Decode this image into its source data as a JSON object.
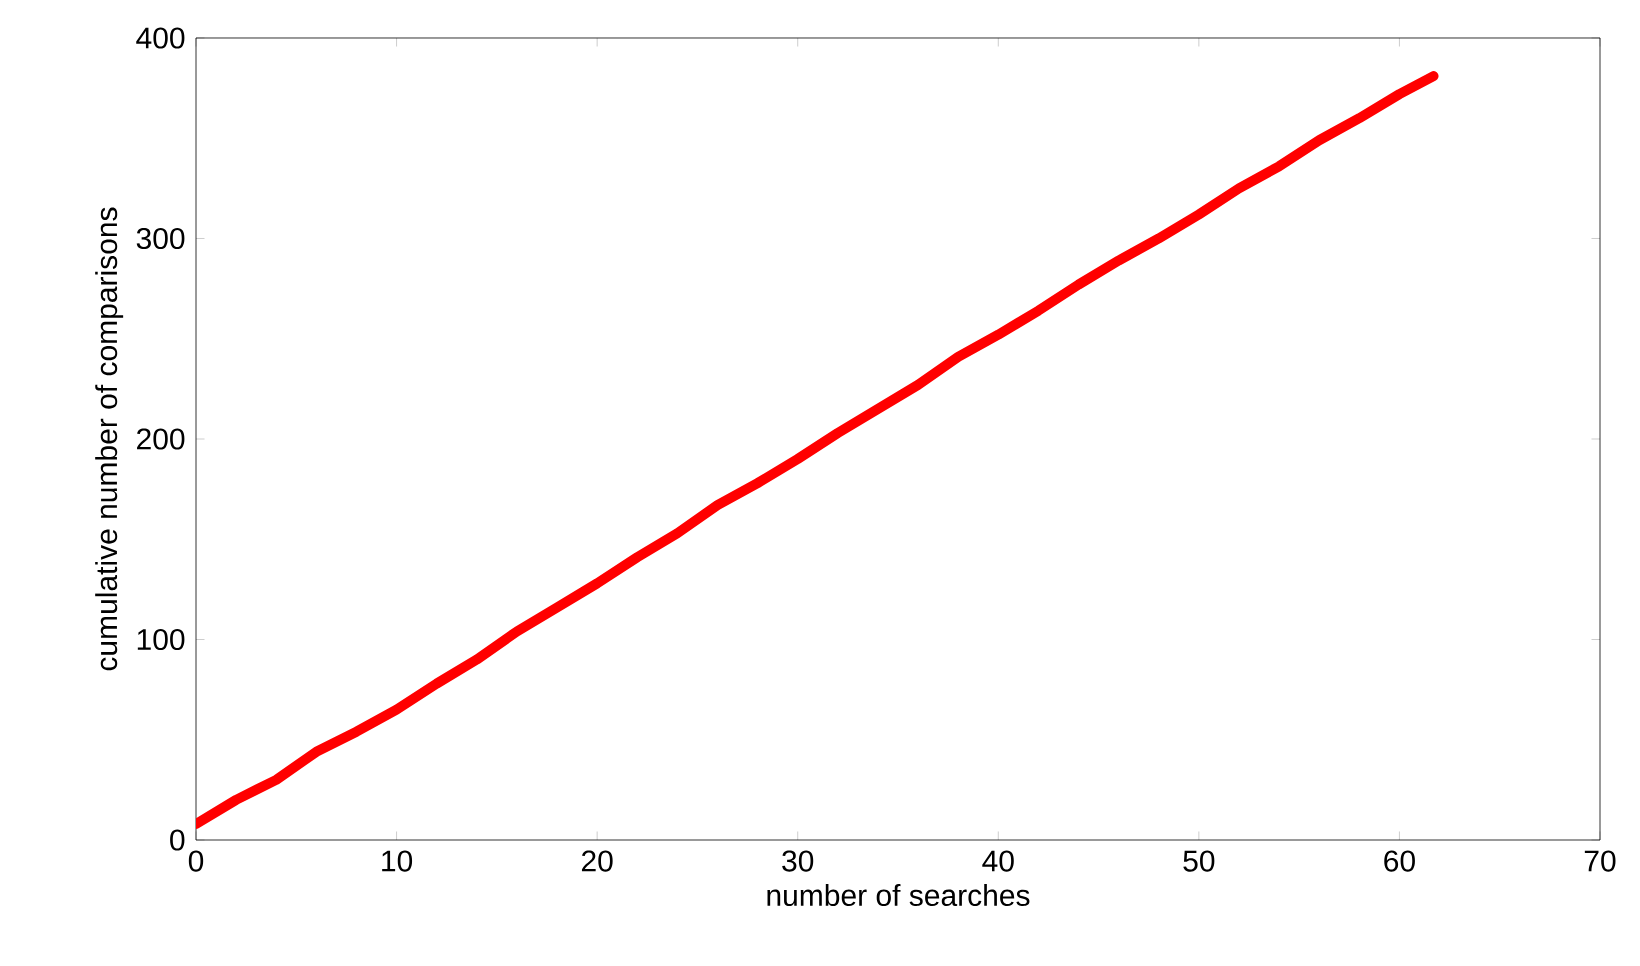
{
  "chart_data": {
    "type": "line",
    "xlabel": "number of searches",
    "ylabel": "cumulative number of comparisons",
    "xlim": [
      0,
      70
    ],
    "xticks": [
      0,
      10,
      20,
      30,
      40,
      50,
      60,
      70
    ],
    "ylim": [
      0,
      400
    ],
    "yticks": [
      0,
      100,
      200,
      300,
      400
    ],
    "grid": false,
    "marker": "none",
    "line_style": "solid",
    "series": [
      {
        "color": "#ff0000",
        "x": [
          0,
          2,
          4,
          6,
          8,
          10,
          12,
          14,
          16,
          18,
          20,
          22,
          24,
          26,
          28,
          30,
          32,
          34,
          36,
          38,
          40,
          42,
          44,
          46,
          48,
          50,
          52,
          54,
          56,
          58,
          60,
          61.7
        ],
        "values": [
          8,
          20,
          30,
          44,
          54,
          65,
          78,
          90,
          104,
          116,
          128,
          141,
          153,
          167,
          178,
          190,
          203,
          215,
          227,
          241,
          252,
          264,
          277,
          289,
          300,
          312,
          325,
          336,
          349,
          360,
          372,
          381
        ]
      }
    ]
  }
}
